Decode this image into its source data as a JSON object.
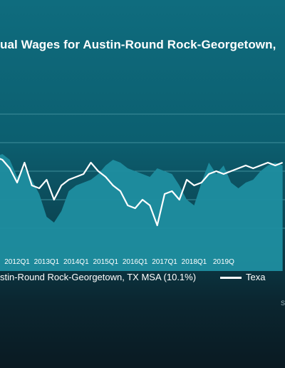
{
  "chart_data": {
    "type": "line",
    "title": "ual Wages for Austin-Round Rock-Georgetown,",
    "xlabel": "",
    "ylabel": "",
    "x_tick_labels": [
      "2012Q1",
      "2013Q1",
      "2014Q1",
      "2015Q1",
      "2016Q1",
      "2017Q1",
      "2018Q1",
      "2019Q"
    ],
    "x_start": "2011Q2",
    "x_end": "2020Q1",
    "series": [
      {
        "name": "stin-Round Rock-Georgetown, TX MSA (10.1%)",
        "style": "area",
        "color": "#1f8ea0",
        "values": [
          4.5,
          4.6,
          4.4,
          3.8,
          4.1,
          3.7,
          3.2,
          2.4,
          2.2,
          2.6,
          3.3,
          3.5,
          3.6,
          3.7,
          3.9,
          4.2,
          4.4,
          4.3,
          4.1,
          4.0,
          3.9,
          3.8,
          4.1,
          4.0,
          3.9,
          3.5,
          3.0,
          2.8,
          3.6,
          4.3,
          3.9,
          4.2,
          3.6,
          3.4,
          3.6,
          3.7,
          4.0,
          4.2,
          4.3,
          4.2
        ]
      },
      {
        "name": "Texa",
        "style": "line",
        "color": "#ffffff",
        "values": [
          4.5,
          4.4,
          4.1,
          3.6,
          4.3,
          3.5,
          3.4,
          3.7,
          3.0,
          3.5,
          3.7,
          3.8,
          3.9,
          4.3,
          4.0,
          3.8,
          3.5,
          3.3,
          2.8,
          2.7,
          3.0,
          2.8,
          2.1,
          3.2,
          3.3,
          3.0,
          3.7,
          3.5,
          3.6,
          3.9,
          4.0,
          3.9,
          4.0,
          4.1,
          4.2,
          4.1,
          4.2,
          4.3,
          4.2,
          4.3
        ]
      }
    ],
    "ylim": [
      1.5,
      6.5
    ],
    "grid": true,
    "legend_position": "bottom"
  },
  "source_text": "S",
  "colors": {
    "area_fill": "#1f8ea0",
    "line": "#ffffff",
    "grid": "#3f8f9c"
  }
}
